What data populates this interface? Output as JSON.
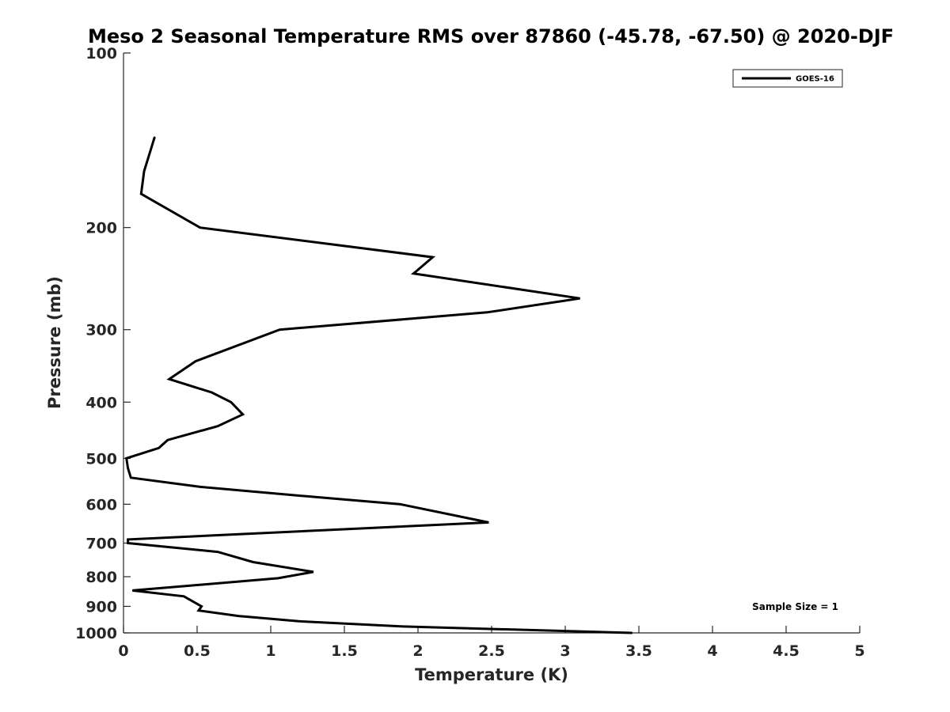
{
  "chart_data": {
    "type": "line",
    "title": "Meso 2 Seasonal Temperature RMS over 87860 (-45.78, -67.50) @ 2020-DJF",
    "xlabel": "Temperature (K)",
    "ylabel": "Pressure (mb)",
    "xlim": [
      0,
      5
    ],
    "ylim": [
      100,
      1000
    ],
    "y_scale": "log",
    "y_reversed": true,
    "x_ticks": [
      0,
      0.5,
      1,
      1.5,
      2,
      2.5,
      3,
      3.5,
      4,
      4.5,
      5
    ],
    "x_tick_labels": [
      "0",
      "0.5",
      "1",
      "1.5",
      "2",
      "2.5",
      "3",
      "3.5",
      "4",
      "4.5",
      "5"
    ],
    "y_ticks": [
      100,
      200,
      300,
      400,
      500,
      600,
      700,
      800,
      900,
      1000
    ],
    "y_tick_labels": [
      "100",
      "200",
      "300",
      "400",
      "500",
      "600",
      "700",
      "800",
      "900",
      "1000"
    ],
    "grid": false,
    "legend_position": "top-right",
    "series": [
      {
        "name": "GOES-16",
        "color": "#000000",
        "points": [
          [
            0.21,
            140
          ],
          [
            0.14,
            160
          ],
          [
            0.12,
            175
          ],
          [
            0.52,
            200
          ],
          [
            2.1,
            225
          ],
          [
            1.97,
            240
          ],
          [
            3.1,
            265
          ],
          [
            2.47,
            280
          ],
          [
            1.06,
            300
          ],
          [
            0.49,
            340
          ],
          [
            0.31,
            365
          ],
          [
            0.6,
            385
          ],
          [
            0.73,
            400
          ],
          [
            0.81,
            420
          ],
          [
            0.64,
            440
          ],
          [
            0.3,
            465
          ],
          [
            0.24,
            480
          ],
          [
            0.02,
            500
          ],
          [
            0.03,
            520
          ],
          [
            0.05,
            540
          ],
          [
            0.52,
            560
          ],
          [
            1.2,
            580
          ],
          [
            1.88,
            600
          ],
          [
            2.48,
            645
          ],
          [
            0.03,
            690
          ],
          [
            0.03,
            700
          ],
          [
            0.64,
            725
          ],
          [
            0.88,
            755
          ],
          [
            1.29,
            785
          ],
          [
            1.05,
            805
          ],
          [
            0.06,
            845
          ],
          [
            0.41,
            865
          ],
          [
            0.53,
            900
          ],
          [
            0.51,
            915
          ],
          [
            0.78,
            935
          ],
          [
            1.19,
            955
          ],
          [
            1.9,
            975
          ],
          [
            3.45,
            1000
          ]
        ]
      }
    ],
    "annotations": [
      "Sample Size = 1"
    ]
  }
}
